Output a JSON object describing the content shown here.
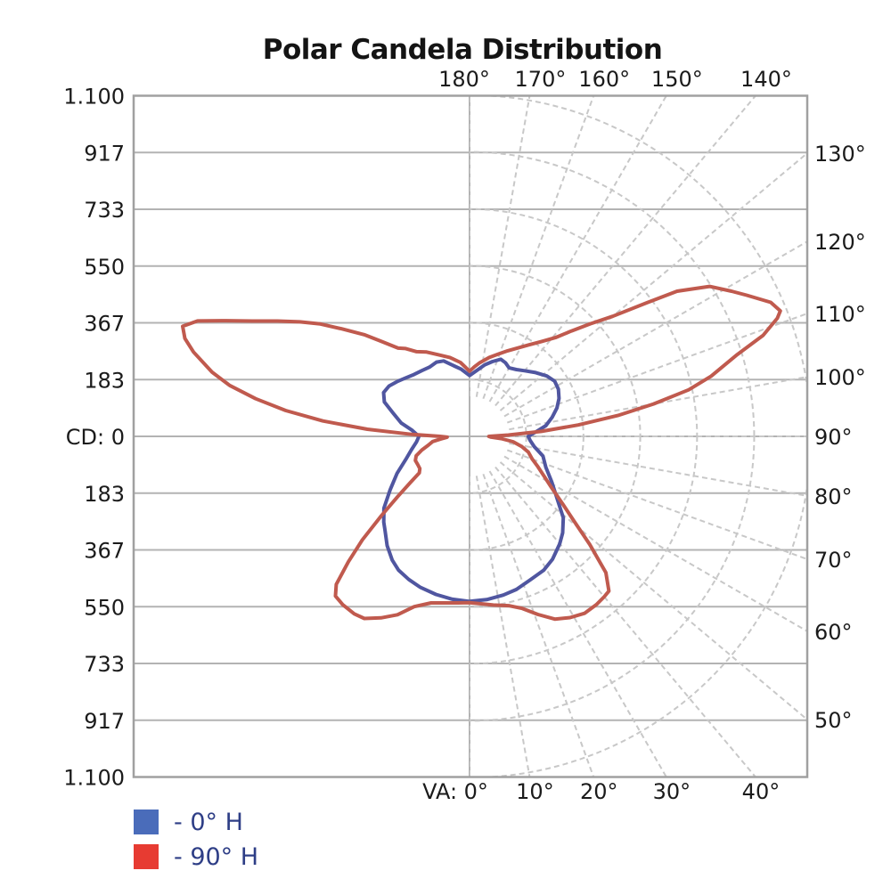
{
  "chart_data": {
    "type": "line",
    "variant": "polar-candela-distribution",
    "title": "Polar Candela Distribution",
    "units": "candela",
    "radial_axis": {
      "zero_label": "CD: 0",
      "max": 1100,
      "step": 183,
      "rings": [
        183,
        367,
        550,
        733,
        917,
        1100
      ],
      "left_tick_labels": [
        "1.100",
        "917",
        "733",
        "550",
        "367",
        "183",
        "CD: 0",
        "183",
        "367",
        "550",
        "733",
        "917",
        "1.100"
      ]
    },
    "angular_axis": {
      "zero_label": "VA: 0°",
      "step_deg": 10,
      "top": [
        {
          "angle": 180,
          "label": "180°"
        },
        {
          "angle": 170,
          "label": "170°"
        },
        {
          "angle": 160,
          "label": "160°"
        },
        {
          "angle": 150,
          "label": "150°"
        },
        {
          "angle": 140,
          "label": "140°"
        }
      ],
      "right": [
        {
          "angle": 130,
          "label": "130°"
        },
        {
          "angle": 120,
          "label": "120°"
        },
        {
          "angle": 110,
          "label": "110°"
        },
        {
          "angle": 100,
          "label": "100°"
        },
        {
          "angle": 90,
          "label": "90°"
        },
        {
          "angle": 80,
          "label": "80°"
        },
        {
          "angle": 70,
          "label": "70°"
        },
        {
          "angle": 60,
          "label": "60°"
        },
        {
          "angle": 50,
          "label": "50°"
        }
      ],
      "bottom": [
        {
          "angle": 0,
          "label": "VA: 0°"
        },
        {
          "angle": 10,
          "label": "10°"
        },
        {
          "angle": 20,
          "label": "20°"
        },
        {
          "angle": 30,
          "label": "30°"
        },
        {
          "angle": 40,
          "label": "40°"
        }
      ]
    },
    "legend": [
      {
        "label": "- 0° H",
        "color": "#4a6cba"
      },
      {
        "label": "- 90° H",
        "color": "#e73b32"
      }
    ],
    "colors": {
      "grid": "#b3b3b3",
      "polar_grid": "#c8c8c8",
      "frame": "#a0a0a0",
      "label_text": "#1b1b1b",
      "legend_text": "#2e3e86"
    },
    "series": [
      {
        "name": "0° H",
        "color": "#5056a0",
        "points": [
          [
            -180,
            196
          ],
          [
            -173,
            218
          ],
          [
            -166,
            238
          ],
          [
            -161,
            257
          ],
          [
            -156,
            262
          ],
          [
            -150,
            258
          ],
          [
            -144,
            262
          ],
          [
            -138,
            268
          ],
          [
            -132,
            280
          ],
          [
            -127,
            293
          ],
          [
            -122,
            306
          ],
          [
            -117,
            311
          ],
          [
            -112,
            296
          ],
          [
            -107,
            258
          ],
          [
            -101,
            224
          ],
          [
            -96,
            186
          ],
          [
            -90,
            163
          ],
          [
            -84,
            172
          ],
          [
            -77,
            192
          ],
          [
            -70,
            219
          ],
          [
            -63,
            262
          ],
          [
            -56,
            309
          ],
          [
            -50,
            360
          ],
          [
            -45,
            391
          ],
          [
            -42,
            407
          ],
          [
            -37,
            441
          ],
          [
            -32,
            470
          ],
          [
            -28,
            488
          ],
          [
            -23,
            501
          ],
          [
            -18,
            512
          ],
          [
            -12,
            521
          ],
          [
            -6,
            528
          ],
          [
            0,
            532
          ],
          [
            6,
            529
          ],
          [
            12,
            523
          ],
          [
            17,
            516
          ],
          [
            23,
            502
          ],
          [
            29,
            493
          ],
          [
            34,
            478
          ],
          [
            40,
            452
          ],
          [
            44,
            432
          ],
          [
            49,
            400
          ],
          [
            54,
            351
          ],
          [
            61,
            303
          ],
          [
            68,
            265
          ],
          [
            75,
            245
          ],
          [
            81,
            211
          ],
          [
            86,
            196
          ],
          [
            90,
            189
          ],
          [
            94,
            215
          ],
          [
            98,
            248
          ],
          [
            103,
            273
          ],
          [
            108,
            296
          ],
          [
            113,
            313
          ],
          [
            118,
            324
          ],
          [
            123,
            327
          ],
          [
            128,
            316
          ],
          [
            134,
            296
          ],
          [
            140,
            276
          ],
          [
            145,
            263
          ],
          [
            150,
            255
          ],
          [
            154,
            264
          ],
          [
            158,
            268
          ],
          [
            163,
            252
          ],
          [
            168,
            236
          ],
          [
            173,
            216
          ],
          [
            180,
            196
          ]
        ]
      },
      {
        "name": "90° H",
        "color": "#c05a4e",
        "points": [
          [
            -180,
            210
          ],
          [
            -173,
            240
          ],
          [
            -166,
            262
          ],
          [
            -159,
            282
          ],
          [
            -153,
            305
          ],
          [
            -148,
            322
          ],
          [
            -144,
            350
          ],
          [
            -141,
            366
          ],
          [
            -137,
            420
          ],
          [
            -134,
            472
          ],
          [
            -130,
            540
          ],
          [
            -127,
            602
          ],
          [
            -124,
            660
          ],
          [
            -121,
            722
          ],
          [
            -118,
            792
          ],
          [
            -115,
            882
          ],
          [
            -113,
            952
          ],
          [
            -111,
            990
          ],
          [
            -109,
            970
          ],
          [
            -107,
            930
          ],
          [
            -104,
            855
          ],
          [
            -102,
            790
          ],
          [
            -100,
            700
          ],
          [
            -98,
            598
          ],
          [
            -96,
            475
          ],
          [
            -94,
            330
          ],
          [
            -92,
            185
          ],
          [
            -90,
            95
          ],
          [
            -88,
            72
          ],
          [
            -85,
            92
          ],
          [
            -82,
            120
          ],
          [
            -78,
            136
          ],
          [
            -74,
            160
          ],
          [
            -70,
            183
          ],
          [
            -66,
            191
          ],
          [
            -61,
            190
          ],
          [
            -57,
            191
          ],
          [
            -54,
            200
          ],
          [
            -52,
            243
          ],
          [
            -50,
            302
          ],
          [
            -48,
            382
          ],
          [
            -46,
            480
          ],
          [
            -44,
            562
          ],
          [
            -42,
            642
          ],
          [
            -40,
            672
          ],
          [
            -37,
            679
          ],
          [
            -33,
            682
          ],
          [
            -30,
            678
          ],
          [
            -26,
            651
          ],
          [
            -22,
            620
          ],
          [
            -18,
            577
          ],
          [
            -13,
            551
          ],
          [
            -8,
            542
          ],
          [
            -4,
            538
          ],
          [
            0,
            536
          ],
          [
            4,
            541
          ],
          [
            8,
            549
          ],
          [
            13,
            560
          ],
          [
            17,
            580
          ],
          [
            21,
            615
          ],
          [
            25,
            650
          ],
          [
            29,
            668
          ],
          [
            33,
            680
          ],
          [
            37,
            679
          ],
          [
            40,
            675
          ],
          [
            42,
            671
          ],
          [
            45,
            621
          ],
          [
            48,
            521
          ],
          [
            51,
            432
          ],
          [
            54,
            371
          ],
          [
            58,
            311
          ],
          [
            62,
            271
          ],
          [
            66,
            241
          ],
          [
            70,
            215
          ],
          [
            75,
            196
          ],
          [
            79,
            171
          ],
          [
            83,
            141
          ],
          [
            86,
            102
          ],
          [
            88,
            68
          ],
          [
            90,
            62
          ],
          [
            92,
            125
          ],
          [
            94,
            232
          ],
          [
            96,
            352
          ],
          [
            98,
            482
          ],
          [
            100,
            602
          ],
          [
            102,
            722
          ],
          [
            104,
            802
          ],
          [
            107,
            902
          ],
          [
            109,
            1000
          ],
          [
            111,
            1062
          ],
          [
            112,
            1080
          ],
          [
            114,
            1062
          ],
          [
            117,
            1002
          ],
          [
            119,
            965
          ],
          [
            122,
            912
          ],
          [
            125,
            816
          ],
          [
            127,
            716
          ],
          [
            130,
            602
          ],
          [
            133,
            532
          ],
          [
            136,
            472
          ],
          [
            139,
            422
          ],
          [
            143,
            382
          ],
          [
            147,
            352
          ],
          [
            151,
            327
          ],
          [
            156,
            302
          ],
          [
            161,
            280
          ],
          [
            166,
            262
          ],
          [
            172,
            240
          ],
          [
            176,
            225
          ],
          [
            180,
            210
          ]
        ]
      }
    ]
  }
}
